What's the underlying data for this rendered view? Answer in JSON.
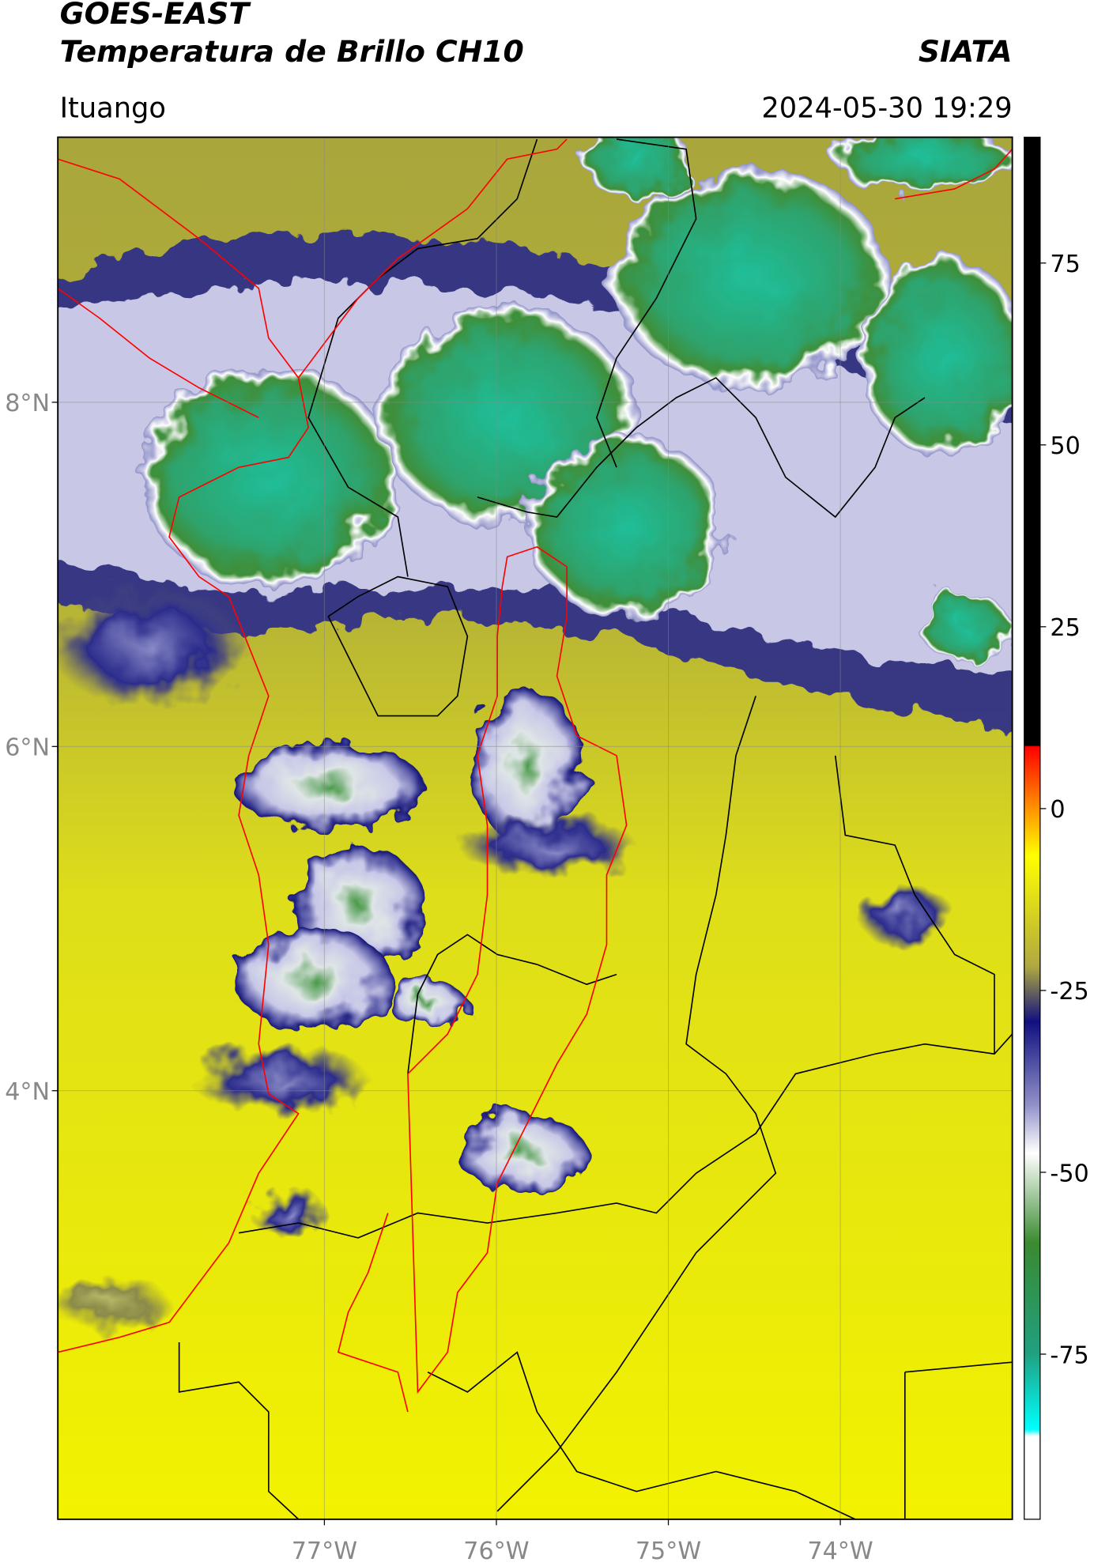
{
  "chart_data": {
    "type": "map",
    "title": "GOES-EAST",
    "subtitle": "Temperatura de Brillo CH10",
    "source": "SIATA",
    "location": "Ituango",
    "datetime": "2024-05-30 19:29",
    "xlim": [
      -78.55,
      -73.0
    ],
    "ylim": [
      1.51,
      9.54
    ],
    "xticks": [
      {
        "value": -77,
        "label": "77°W"
      },
      {
        "value": -76,
        "label": "76°W"
      },
      {
        "value": -75,
        "label": "75°W"
      },
      {
        "value": -74,
        "label": "74°W"
      }
    ],
    "yticks": [
      {
        "value": 8,
        "label": "8°N"
      },
      {
        "value": 6,
        "label": "6°N"
      },
      {
        "value": 4,
        "label": "4°N"
      }
    ],
    "grid": true,
    "clim": [
      -97.7,
      92.3
    ],
    "cticks": [
      -75,
      -50,
      -25,
      0,
      25,
      50,
      75
    ]
  }
}
